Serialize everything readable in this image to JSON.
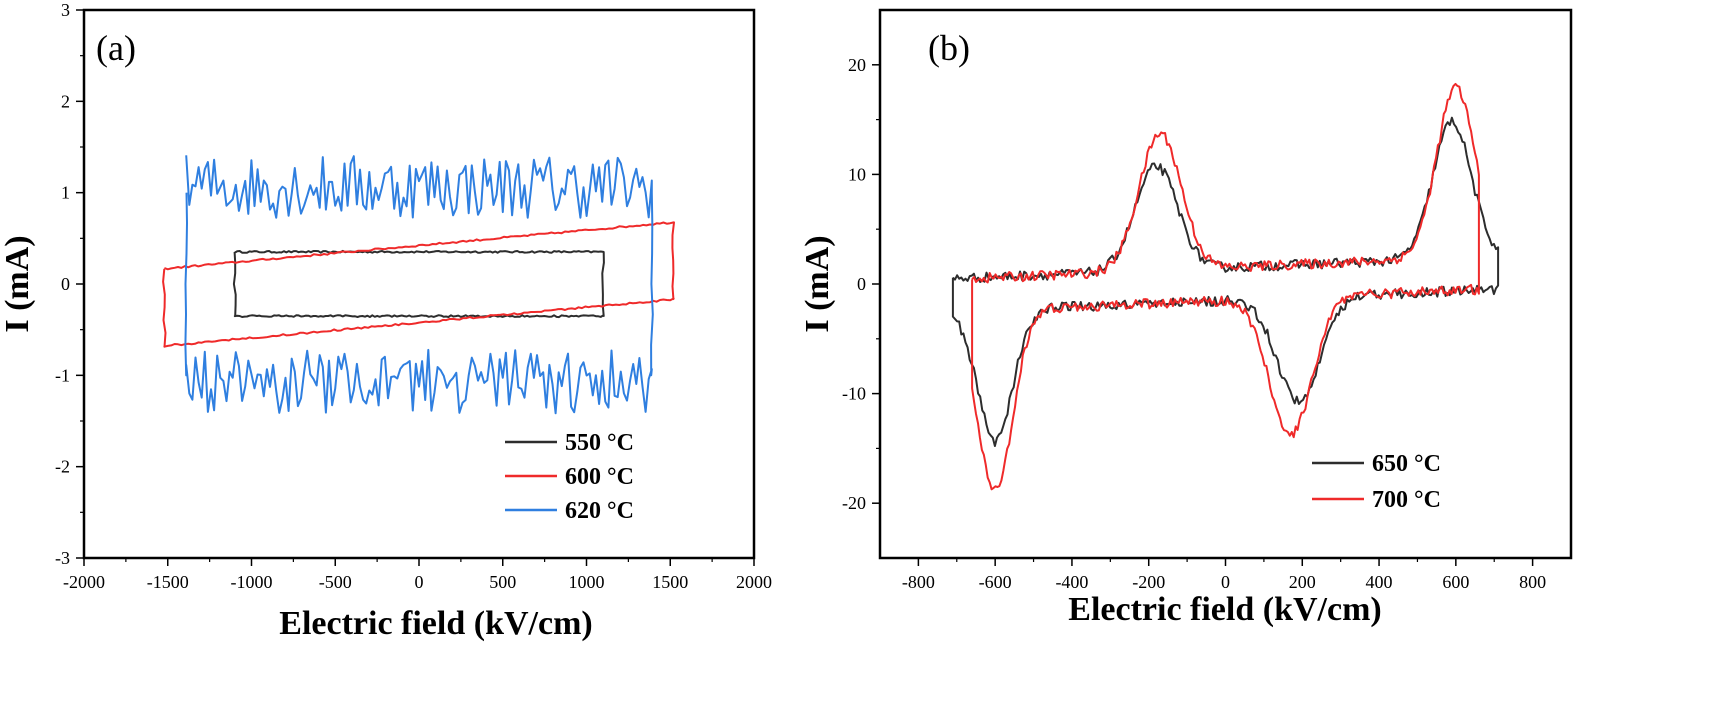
{
  "colors": {
    "black": "#2d2d2d",
    "red": "#ef2a2a",
    "blue": "#2f7fe0"
  },
  "chart_data": [
    {
      "type": "line",
      "panel_label": "(a)",
      "xlabel": "Electric field  (kV/cm)",
      "ylabel": "I (mA)",
      "xlim": [
        -2000,
        2000
      ],
      "ylim": [
        -3,
        3
      ],
      "xticks": [
        "-2000",
        "-1500",
        "-1000",
        "-500",
        "0",
        "500",
        "1000",
        "1500",
        "2000"
      ],
      "yticks": [
        "-3",
        "-2",
        "-1",
        "0",
        "1",
        "2",
        "3"
      ],
      "legend_position": "bottom-right",
      "series": [
        {
          "name": "550 °C",
          "color": "#2d2d2d",
          "shape": "loop",
          "emax": 1100,
          "upper": 0.35,
          "lower": -0.35,
          "noise": 0.02
        },
        {
          "name": "600 °C",
          "color": "#ef2a2a",
          "shape": "loop",
          "emax": 1520,
          "upper": 0.42,
          "lower": -0.42,
          "tilt": 0.3,
          "noise": 0.02
        },
        {
          "name": "620 °C",
          "color": "#2f7fe0",
          "shape": "loop",
          "emax": 1390,
          "upper": 1.0,
          "lower": -1.0,
          "noise": 0.35
        }
      ]
    },
    {
      "type": "line",
      "panel_label": "(b)",
      "xlabel": "Electric field  (kV/cm)",
      "ylabel": "I (mA)",
      "xlim": [
        -900,
        900
      ],
      "ylim": [
        -25,
        25
      ],
      "xticks": [
        "-800",
        "-600",
        "-400",
        "-200",
        "0",
        "200",
        "400",
        "600",
        "800"
      ],
      "yticks": [
        "-20",
        "-10",
        "0",
        "10",
        "20"
      ],
      "legend_position": "bottom-right",
      "series": [
        {
          "name": "650 °C",
          "color": "#2d2d2d",
          "shape": "switching",
          "emax": 710,
          "peak_pos": 15.5,
          "peak_pos_e": 590,
          "peak_neg": -15,
          "peak_neg_e": -600,
          "mid_pos": 12,
          "mid_pos_e": -180,
          "mid_neg": -12,
          "mid_neg_e": 190
        },
        {
          "name": "700 °C",
          "color": "#ef2a2a",
          "shape": "switching",
          "emax": 660,
          "peak_pos": 18.5,
          "peak_pos_e": 600,
          "peak_neg": -19.5,
          "peak_neg_e": -600,
          "mid_pos": 15,
          "mid_pos_e": -170,
          "mid_neg": -15,
          "mid_neg_e": 170
        }
      ]
    }
  ]
}
